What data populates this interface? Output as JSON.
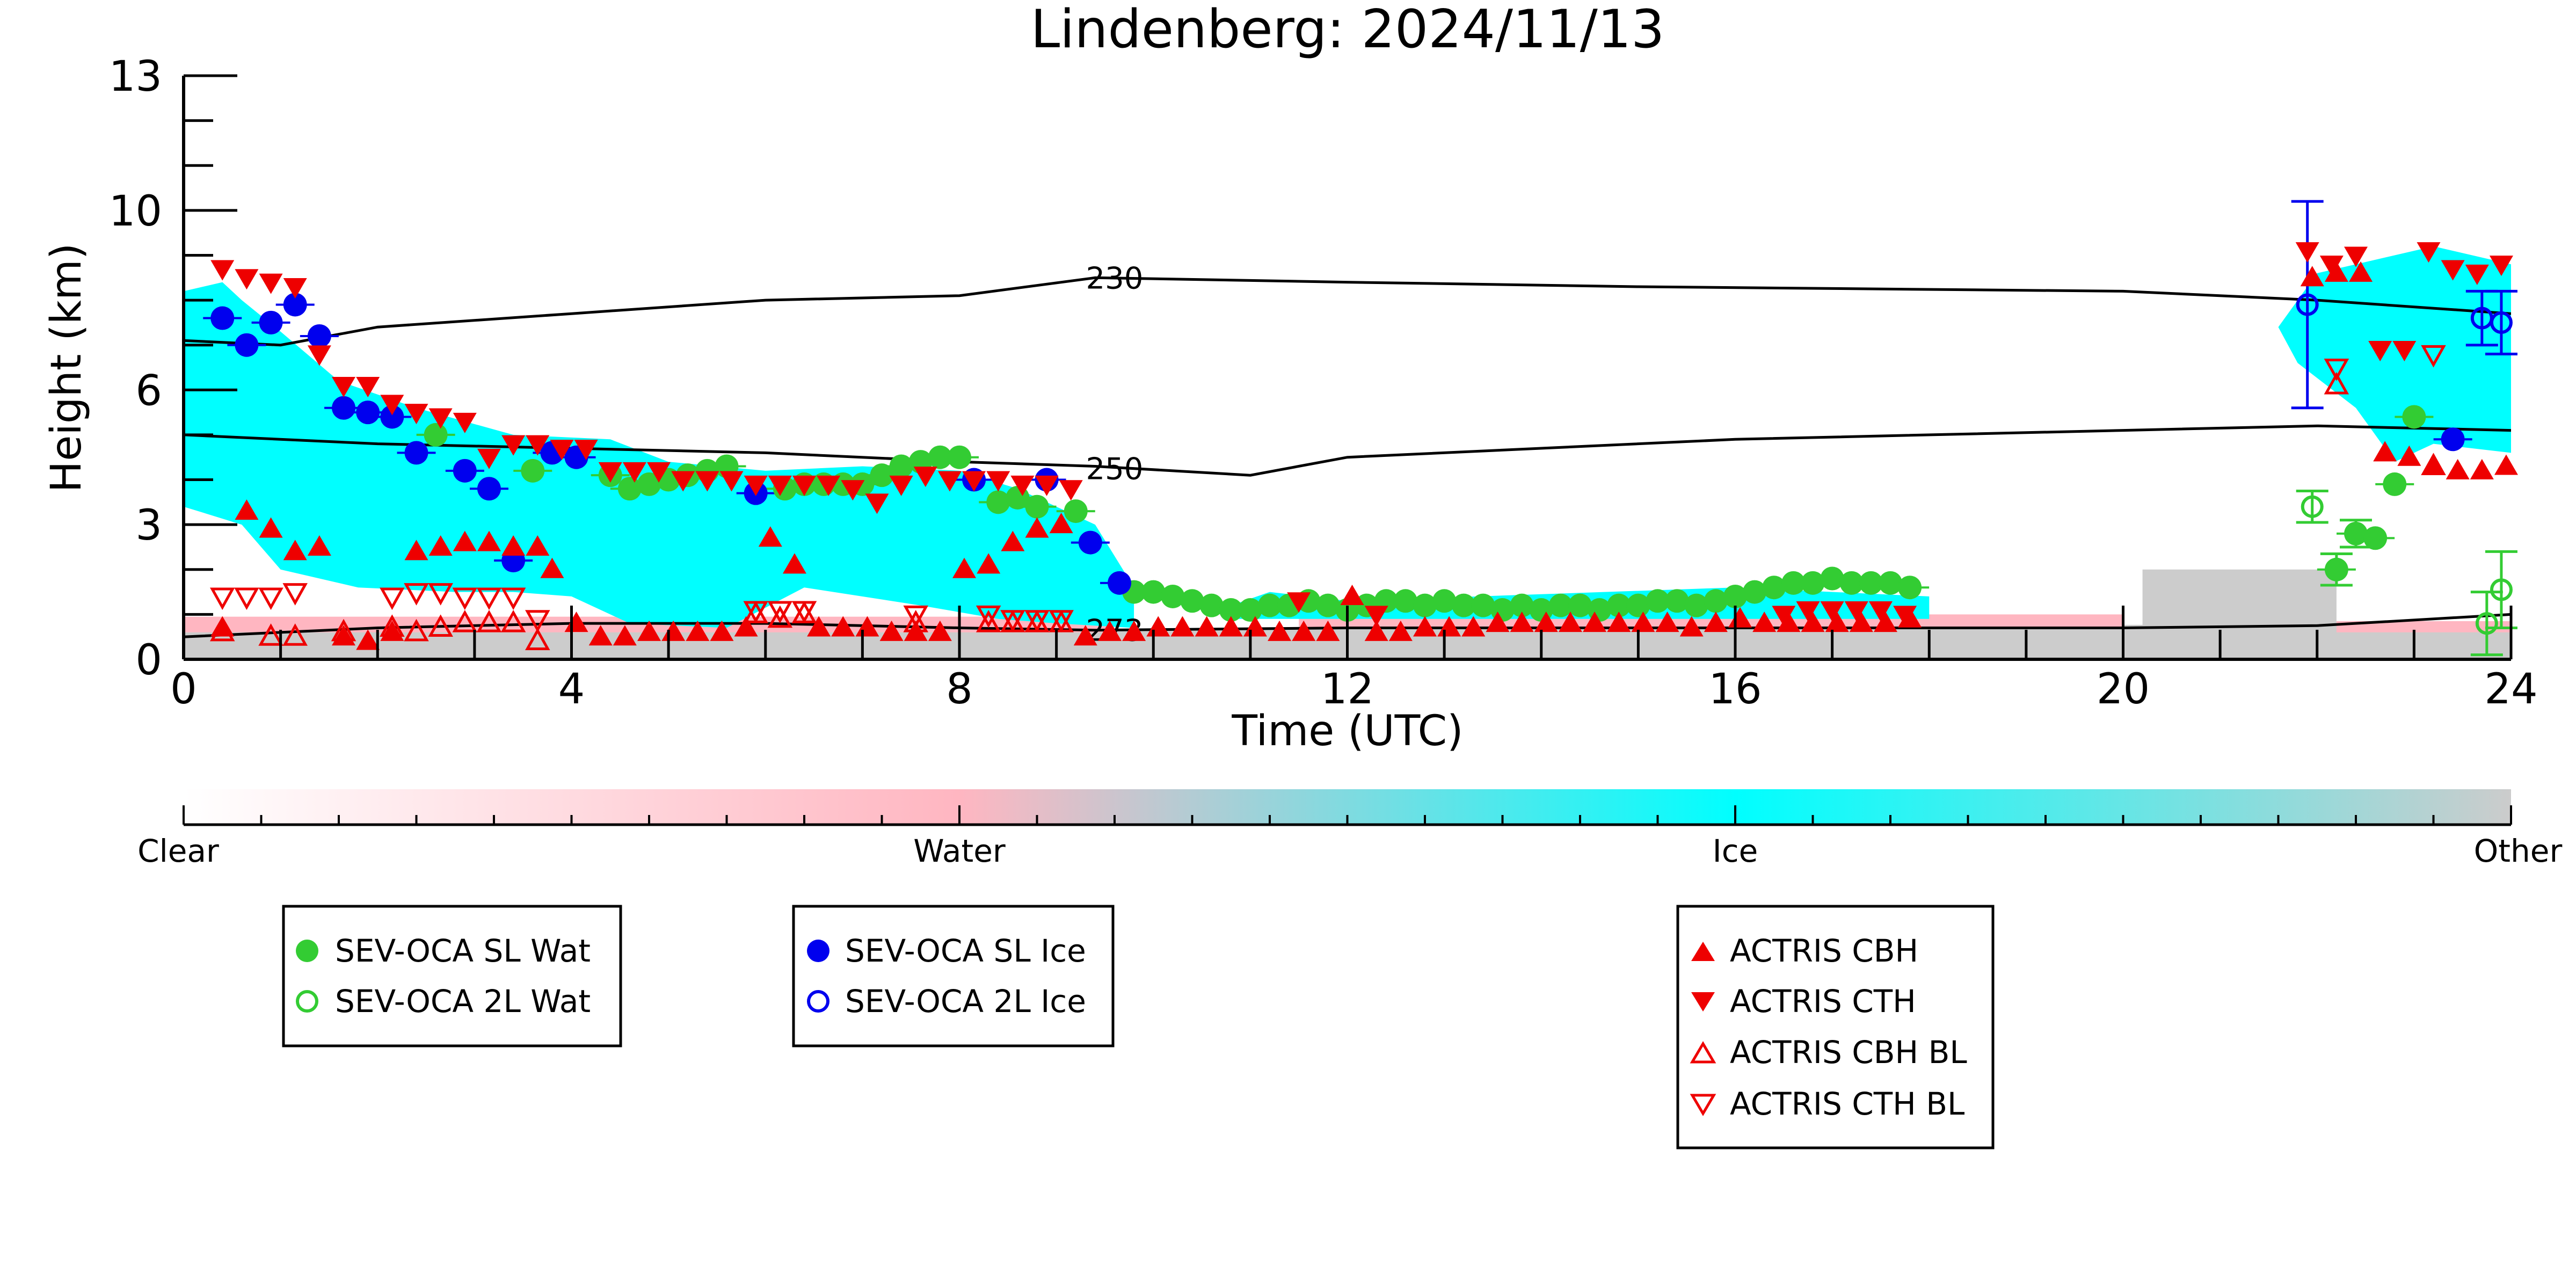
{
  "chart_data": {
    "type": "scatter",
    "title": "Lindenberg: 2024/11/13",
    "xlabel": "Time (UTC)",
    "ylabel": "Height (km)",
    "xlim": [
      0,
      24
    ],
    "ylim": [
      0,
      13
    ],
    "xticks": [
      0,
      4,
      8,
      12,
      16,
      20,
      24
    ],
    "yticks": [
      0,
      3,
      6,
      10,
      13
    ],
    "background_classes": {
      "ice_regions": [
        [
          [
            0,
            3.4
          ],
          [
            0.6,
            3.0
          ],
          [
            1.0,
            2.0
          ],
          [
            1.8,
            1.6
          ],
          [
            2.8,
            1.5
          ],
          [
            3.4,
            1.5
          ],
          [
            4.0,
            1.4
          ],
          [
            4.6,
            0.8
          ],
          [
            5.6,
            0.7
          ],
          [
            6.4,
            1.6
          ],
          [
            7.6,
            1.2
          ],
          [
            8.4,
            0.9
          ],
          [
            9.0,
            0.8
          ],
          [
            9.8,
            0.7
          ],
          [
            9.8,
            1.6
          ],
          [
            9.4,
            3.0
          ],
          [
            8.6,
            3.8
          ],
          [
            8.0,
            4.2
          ],
          [
            7.0,
            4.3
          ],
          [
            6.0,
            4.2
          ],
          [
            5.0,
            4.4
          ],
          [
            4.4,
            4.9
          ],
          [
            3.4,
            5.0
          ],
          [
            2.4,
            5.6
          ],
          [
            1.6,
            6.2
          ],
          [
            1.0,
            7.3
          ],
          [
            0.6,
            8.0
          ],
          [
            0.4,
            8.4
          ],
          [
            0,
            8.2
          ]
        ],
        [
          [
            10.8,
            0.9
          ],
          [
            18.0,
            0.9
          ],
          [
            18.0,
            1.4
          ],
          [
            16.0,
            1.6
          ],
          [
            12.0,
            1.3
          ],
          [
            11.2,
            1.5
          ],
          [
            10.8,
            1.2
          ]
        ],
        [
          [
            21.6,
            7.4
          ],
          [
            22.0,
            8.6
          ],
          [
            22.4,
            8.8
          ],
          [
            23.2,
            9.2
          ],
          [
            24,
            8.8
          ],
          [
            24,
            4.6
          ],
          [
            23.2,
            4.8
          ],
          [
            22.8,
            4.4
          ],
          [
            22.4,
            5.6
          ],
          [
            21.8,
            6.6
          ]
        ]
      ],
      "water_regions": [
        [
          [
            0,
            0.6
          ],
          [
            9.6,
            0.6
          ],
          [
            9.6,
            0.95
          ],
          [
            0,
            0.95
          ]
        ],
        [
          [
            11.5,
            0.7
          ],
          [
            20,
            0.7
          ],
          [
            20,
            1.0
          ],
          [
            11.5,
            1.0
          ]
        ],
        [
          [
            22.2,
            0.6
          ],
          [
            24,
            0.6
          ],
          [
            24,
            0.85
          ],
          [
            22.2,
            0.85
          ]
        ]
      ],
      "other_regions": [
        [
          [
            0,
            0
          ],
          [
            24,
            0
          ],
          [
            24,
            0.8
          ],
          [
            0,
            0.6
          ]
        ],
        [
          [
            20.2,
            0.6
          ],
          [
            22.2,
            0.6
          ],
          [
            22.2,
            2.0
          ],
          [
            20.2,
            2.0
          ]
        ]
      ]
    },
    "contours": [
      {
        "label": "230",
        "points": [
          [
            0,
            7.1
          ],
          [
            1.0,
            7.0
          ],
          [
            2.0,
            7.4
          ],
          [
            4.0,
            7.7
          ],
          [
            6.0,
            8.0
          ],
          [
            8.0,
            8.1
          ],
          [
            9.4,
            8.5
          ],
          [
            12.0,
            8.4
          ],
          [
            15.0,
            8.3
          ],
          [
            20.0,
            8.2
          ],
          [
            22.0,
            8.0
          ],
          [
            24.0,
            7.7
          ]
        ]
      },
      {
        "label": "250",
        "points": [
          [
            0,
            5.0
          ],
          [
            2.0,
            4.8
          ],
          [
            4.0,
            4.7
          ],
          [
            6.0,
            4.6
          ],
          [
            8.0,
            4.4
          ],
          [
            9.4,
            4.3
          ],
          [
            11.0,
            4.1
          ],
          [
            12.0,
            4.5
          ],
          [
            16.0,
            4.9
          ],
          [
            20.0,
            5.1
          ],
          [
            22.0,
            5.2
          ],
          [
            24.0,
            5.1
          ]
        ]
      },
      {
        "label": "273",
        "points": [
          [
            0,
            0.5
          ],
          [
            2.0,
            0.7
          ],
          [
            4.0,
            0.8
          ],
          [
            6.0,
            0.8
          ],
          [
            8.0,
            0.7
          ],
          [
            9.4,
            0.65
          ],
          [
            12.0,
            0.7
          ],
          [
            16.0,
            0.7
          ],
          [
            20.0,
            0.7
          ],
          [
            22.0,
            0.75
          ],
          [
            24.0,
            1.0
          ]
        ]
      }
    ],
    "series": [
      {
        "name": "SEV-OCA SL Wat",
        "marker": "circle-filled",
        "color": "#33cc33",
        "x": [
          2.6,
          3.6,
          4.4,
          4.6,
          4.8,
          5.0,
          5.2,
          5.4,
          5.6,
          6.2,
          6.4,
          6.6,
          6.8,
          7.0,
          7.2,
          7.4,
          7.6,
          7.8,
          8.0,
          8.4,
          8.6,
          8.8,
          9.2,
          9.8,
          10.0,
          10.2,
          10.4,
          10.6,
          10.8,
          11.0,
          11.2,
          11.4,
          11.6,
          11.8,
          12.0,
          12.2,
          12.4,
          12.6,
          12.8,
          13.0,
          13.2,
          13.4,
          13.6,
          13.8,
          14.0,
          14.2,
          14.4,
          14.6,
          14.8,
          15.0,
          15.2,
          15.4,
          15.6,
          15.8,
          16.0,
          16.2,
          16.4,
          16.6,
          16.8,
          17.0,
          17.2,
          17.4,
          17.6,
          17.8,
          22.2,
          22.4,
          22.6,
          22.8,
          23.0
        ],
        "y": [
          5.0,
          4.2,
          4.1,
          3.8,
          3.9,
          4.0,
          4.1,
          4.2,
          4.3,
          3.8,
          3.9,
          3.9,
          3.9,
          3.9,
          4.1,
          4.3,
          4.4,
          4.5,
          4.5,
          3.5,
          3.6,
          3.4,
          3.3,
          1.5,
          1.5,
          1.4,
          1.3,
          1.2,
          1.1,
          1.1,
          1.2,
          1.2,
          1.3,
          1.2,
          1.1,
          1.2,
          1.3,
          1.3,
          1.2,
          1.3,
          1.2,
          1.2,
          1.1,
          1.2,
          1.1,
          1.2,
          1.2,
          1.1,
          1.2,
          1.2,
          1.3,
          1.3,
          1.2,
          1.3,
          1.4,
          1.5,
          1.6,
          1.7,
          1.7,
          1.8,
          1.7,
          1.7,
          1.7,
          1.6,
          2.0,
          2.8,
          2.7,
          3.9,
          5.4
        ],
        "err": [
          0,
          0,
          0,
          0,
          0,
          0,
          0,
          0,
          0,
          0,
          0,
          0,
          0,
          0,
          0,
          0,
          0,
          0,
          0,
          0,
          0,
          0,
          0,
          0,
          0,
          0,
          0,
          0,
          0,
          0,
          0,
          0,
          0,
          0,
          0,
          0,
          0,
          0,
          0,
          0,
          0,
          0,
          0,
          0,
          0,
          0,
          0,
          0,
          0,
          0,
          0,
          0,
          0,
          0,
          0,
          0,
          0,
          0,
          0,
          0,
          0,
          0,
          0,
          0,
          0.35,
          0.3,
          0,
          0,
          0
        ]
      },
      {
        "name": "SEV-OCA 2L Wat",
        "marker": "circle-open",
        "color": "#33cc33",
        "x": [
          21.95,
          23.75,
          23.9
        ],
        "y": [
          3.4,
          0.8,
          1.55
        ],
        "err": [
          0.35,
          0.7,
          0.85
        ]
      },
      {
        "name": "SEV-OCA SL Ice",
        "marker": "circle-filled",
        "color": "#0000ee",
        "x": [
          0.4,
          0.65,
          0.9,
          1.15,
          1.4,
          1.65,
          1.9,
          2.15,
          2.4,
          2.9,
          3.15,
          3.4,
          3.8,
          4.05,
          5.9,
          8.15,
          8.9,
          9.35,
          9.65,
          23.4
        ],
        "y": [
          7.6,
          7.0,
          7.5,
          7.9,
          7.2,
          5.6,
          5.5,
          5.4,
          4.6,
          4.2,
          3.8,
          2.2,
          4.6,
          4.5,
          3.7,
          4.0,
          4.0,
          2.6,
          1.7,
          4.9
        ],
        "err": [
          0,
          0,
          0,
          0,
          0,
          0,
          0,
          0,
          0,
          0,
          0,
          0,
          0,
          0,
          0,
          0,
          0,
          0,
          0,
          0
        ]
      },
      {
        "name": "SEV-OCA 2L Ice",
        "marker": "circle-open",
        "color": "#0000ee",
        "x": [
          21.9,
          23.7,
          23.9
        ],
        "y": [
          7.9,
          7.6,
          7.5
        ],
        "err": [
          2.3,
          0.6,
          0.7
        ]
      },
      {
        "name": "ACTRIS CBH",
        "marker": "triangle-up-filled",
        "color": "#ee0000",
        "x": [
          0.4,
          0.65,
          0.9,
          1.15,
          1.4,
          1.65,
          1.9,
          2.15,
          2.4,
          2.65,
          2.9,
          3.15,
          3.4,
          3.65,
          3.8,
          4.05,
          4.3,
          4.55,
          4.8,
          5.05,
          5.3,
          5.55,
          5.8,
          6.05,
          6.3,
          6.55,
          6.8,
          7.05,
          7.3,
          7.55,
          7.8,
          8.05,
          8.3,
          8.55,
          8.8,
          9.05,
          9.3,
          9.55,
          9.8,
          10.05,
          10.3,
          10.55,
          10.8,
          11.05,
          11.3,
          11.55,
          11.8,
          12.05,
          12.3,
          12.55,
          12.8,
          13.05,
          13.3,
          13.55,
          13.8,
          14.05,
          14.3,
          14.55,
          14.8,
          15.05,
          15.3,
          15.55,
          15.8,
          16.05,
          16.3,
          16.55,
          16.8,
          17.05,
          17.3,
          17.55,
          17.8,
          21.95,
          22.2,
          22.45,
          22.7,
          22.95,
          23.2,
          23.45,
          23.7,
          23.95
        ],
        "y": [
          0.7,
          3.3,
          2.9,
          2.4,
          2.5,
          0.5,
          0.4,
          0.6,
          2.4,
          2.5,
          2.6,
          2.6,
          2.5,
          2.5,
          2.0,
          0.8,
          0.5,
          0.5,
          0.6,
          0.6,
          0.6,
          0.6,
          0.7,
          2.7,
          2.1,
          0.7,
          0.7,
          0.7,
          0.6,
          0.6,
          0.6,
          2.0,
          2.1,
          2.6,
          2.9,
          3.0,
          0.5,
          0.6,
          0.6,
          0.7,
          0.7,
          0.7,
          0.7,
          0.7,
          0.6,
          0.6,
          0.6,
          1.4,
          0.6,
          0.6,
          0.7,
          0.7,
          0.7,
          0.8,
          0.8,
          0.8,
          0.8,
          0.8,
          0.8,
          0.8,
          0.8,
          0.7,
          0.8,
          0.9,
          0.8,
          0.8,
          0.8,
          0.8,
          0.8,
          0.8,
          0.9,
          8.5,
          8.6,
          8.6,
          4.6,
          4.5,
          4.3,
          4.2,
          4.2,
          4.3
        ]
      },
      {
        "name": "ACTRIS CTH",
        "marker": "triangle-down-filled",
        "color": "#ee0000",
        "x": [
          0.4,
          0.65,
          0.9,
          1.15,
          1.4,
          1.65,
          1.9,
          2.15,
          2.4,
          2.65,
          2.9,
          3.15,
          3.4,
          3.65,
          3.9,
          4.15,
          4.4,
          4.65,
          4.9,
          5.15,
          5.4,
          5.65,
          5.9,
          6.15,
          6.4,
          6.65,
          6.9,
          7.15,
          7.4,
          7.65,
          7.9,
          8.15,
          8.4,
          8.65,
          8.9,
          9.15,
          11.5,
          12.3,
          16.5,
          16.75,
          17.0,
          17.25,
          17.5,
          17.75,
          21.9,
          22.15,
          22.4,
          22.65,
          22.9,
          23.15,
          23.4,
          23.65,
          23.9
        ],
        "y": [
          8.7,
          8.5,
          8.4,
          8.3,
          6.8,
          6.1,
          6.1,
          5.7,
          5.5,
          5.4,
          5.3,
          4.5,
          4.8,
          4.8,
          4.7,
          4.7,
          4.2,
          4.2,
          4.2,
          4.0,
          4.0,
          4.0,
          3.9,
          3.9,
          3.9,
          3.9,
          3.8,
          3.5,
          3.9,
          4.1,
          4.0,
          4.0,
          4.0,
          3.9,
          3.9,
          3.8,
          1.3,
          1.0,
          1.0,
          1.1,
          1.1,
          1.1,
          1.1,
          1.0,
          9.1,
          8.8,
          9.0,
          6.9,
          6.9,
          9.1,
          8.7,
          8.6,
          8.8
        ]
      },
      {
        "name": "ACTRIS CBH BL",
        "marker": "triangle-up-open",
        "color": "#ee0000",
        "x": [
          0.4,
          0.9,
          1.15,
          1.65,
          2.15,
          2.4,
          2.65,
          2.9,
          3.15,
          3.4,
          3.65,
          5.9,
          6.15,
          6.4,
          7.55,
          8.3,
          8.55,
          8.8,
          9.05,
          22.2,
          23.2
        ],
        "y": [
          0.6,
          0.5,
          0.5,
          0.6,
          0.7,
          0.6,
          0.7,
          0.8,
          0.8,
          0.8,
          0.4,
          1.0,
          0.9,
          1.0,
          0.8,
          0.8,
          0.8,
          0.8,
          0.8,
          6.1,
          4.3
        ]
      },
      {
        "name": "ACTRIS CTH BL",
        "marker": "triangle-down-open",
        "color": "#ee0000",
        "x": [
          0.4,
          0.65,
          0.9,
          1.15,
          2.15,
          2.4,
          2.65,
          2.9,
          3.15,
          3.4,
          3.65,
          5.9,
          6.15,
          6.4,
          7.55,
          8.3,
          8.55,
          8.8,
          9.05,
          22.2,
          23.2
        ],
        "y": [
          1.4,
          1.4,
          1.4,
          1.5,
          1.4,
          1.5,
          1.5,
          1.4,
          1.4,
          1.4,
          0.9,
          1.1,
          1.1,
          1.1,
          1.0,
          1.0,
          0.9,
          0.9,
          0.9,
          6.5,
          6.8
        ]
      }
    ]
  },
  "colorbar": {
    "labels": [
      "Clear",
      "Water",
      "Ice",
      "Other"
    ],
    "colors": [
      "#ffffff",
      "#ffb6c1",
      "#00ffff",
      "#cccccc"
    ]
  },
  "legends": [
    {
      "entries": [
        "SEV-OCA SL Wat",
        "SEV-OCA 2L Wat"
      ]
    },
    {
      "entries": [
        "SEV-OCA SL Ice",
        "SEV-OCA 2L Ice"
      ]
    },
    {
      "entries": [
        "ACTRIS CBH",
        "ACTRIS CTH",
        "ACTRIS CBH BL",
        "ACTRIS CTH BL"
      ]
    }
  ]
}
